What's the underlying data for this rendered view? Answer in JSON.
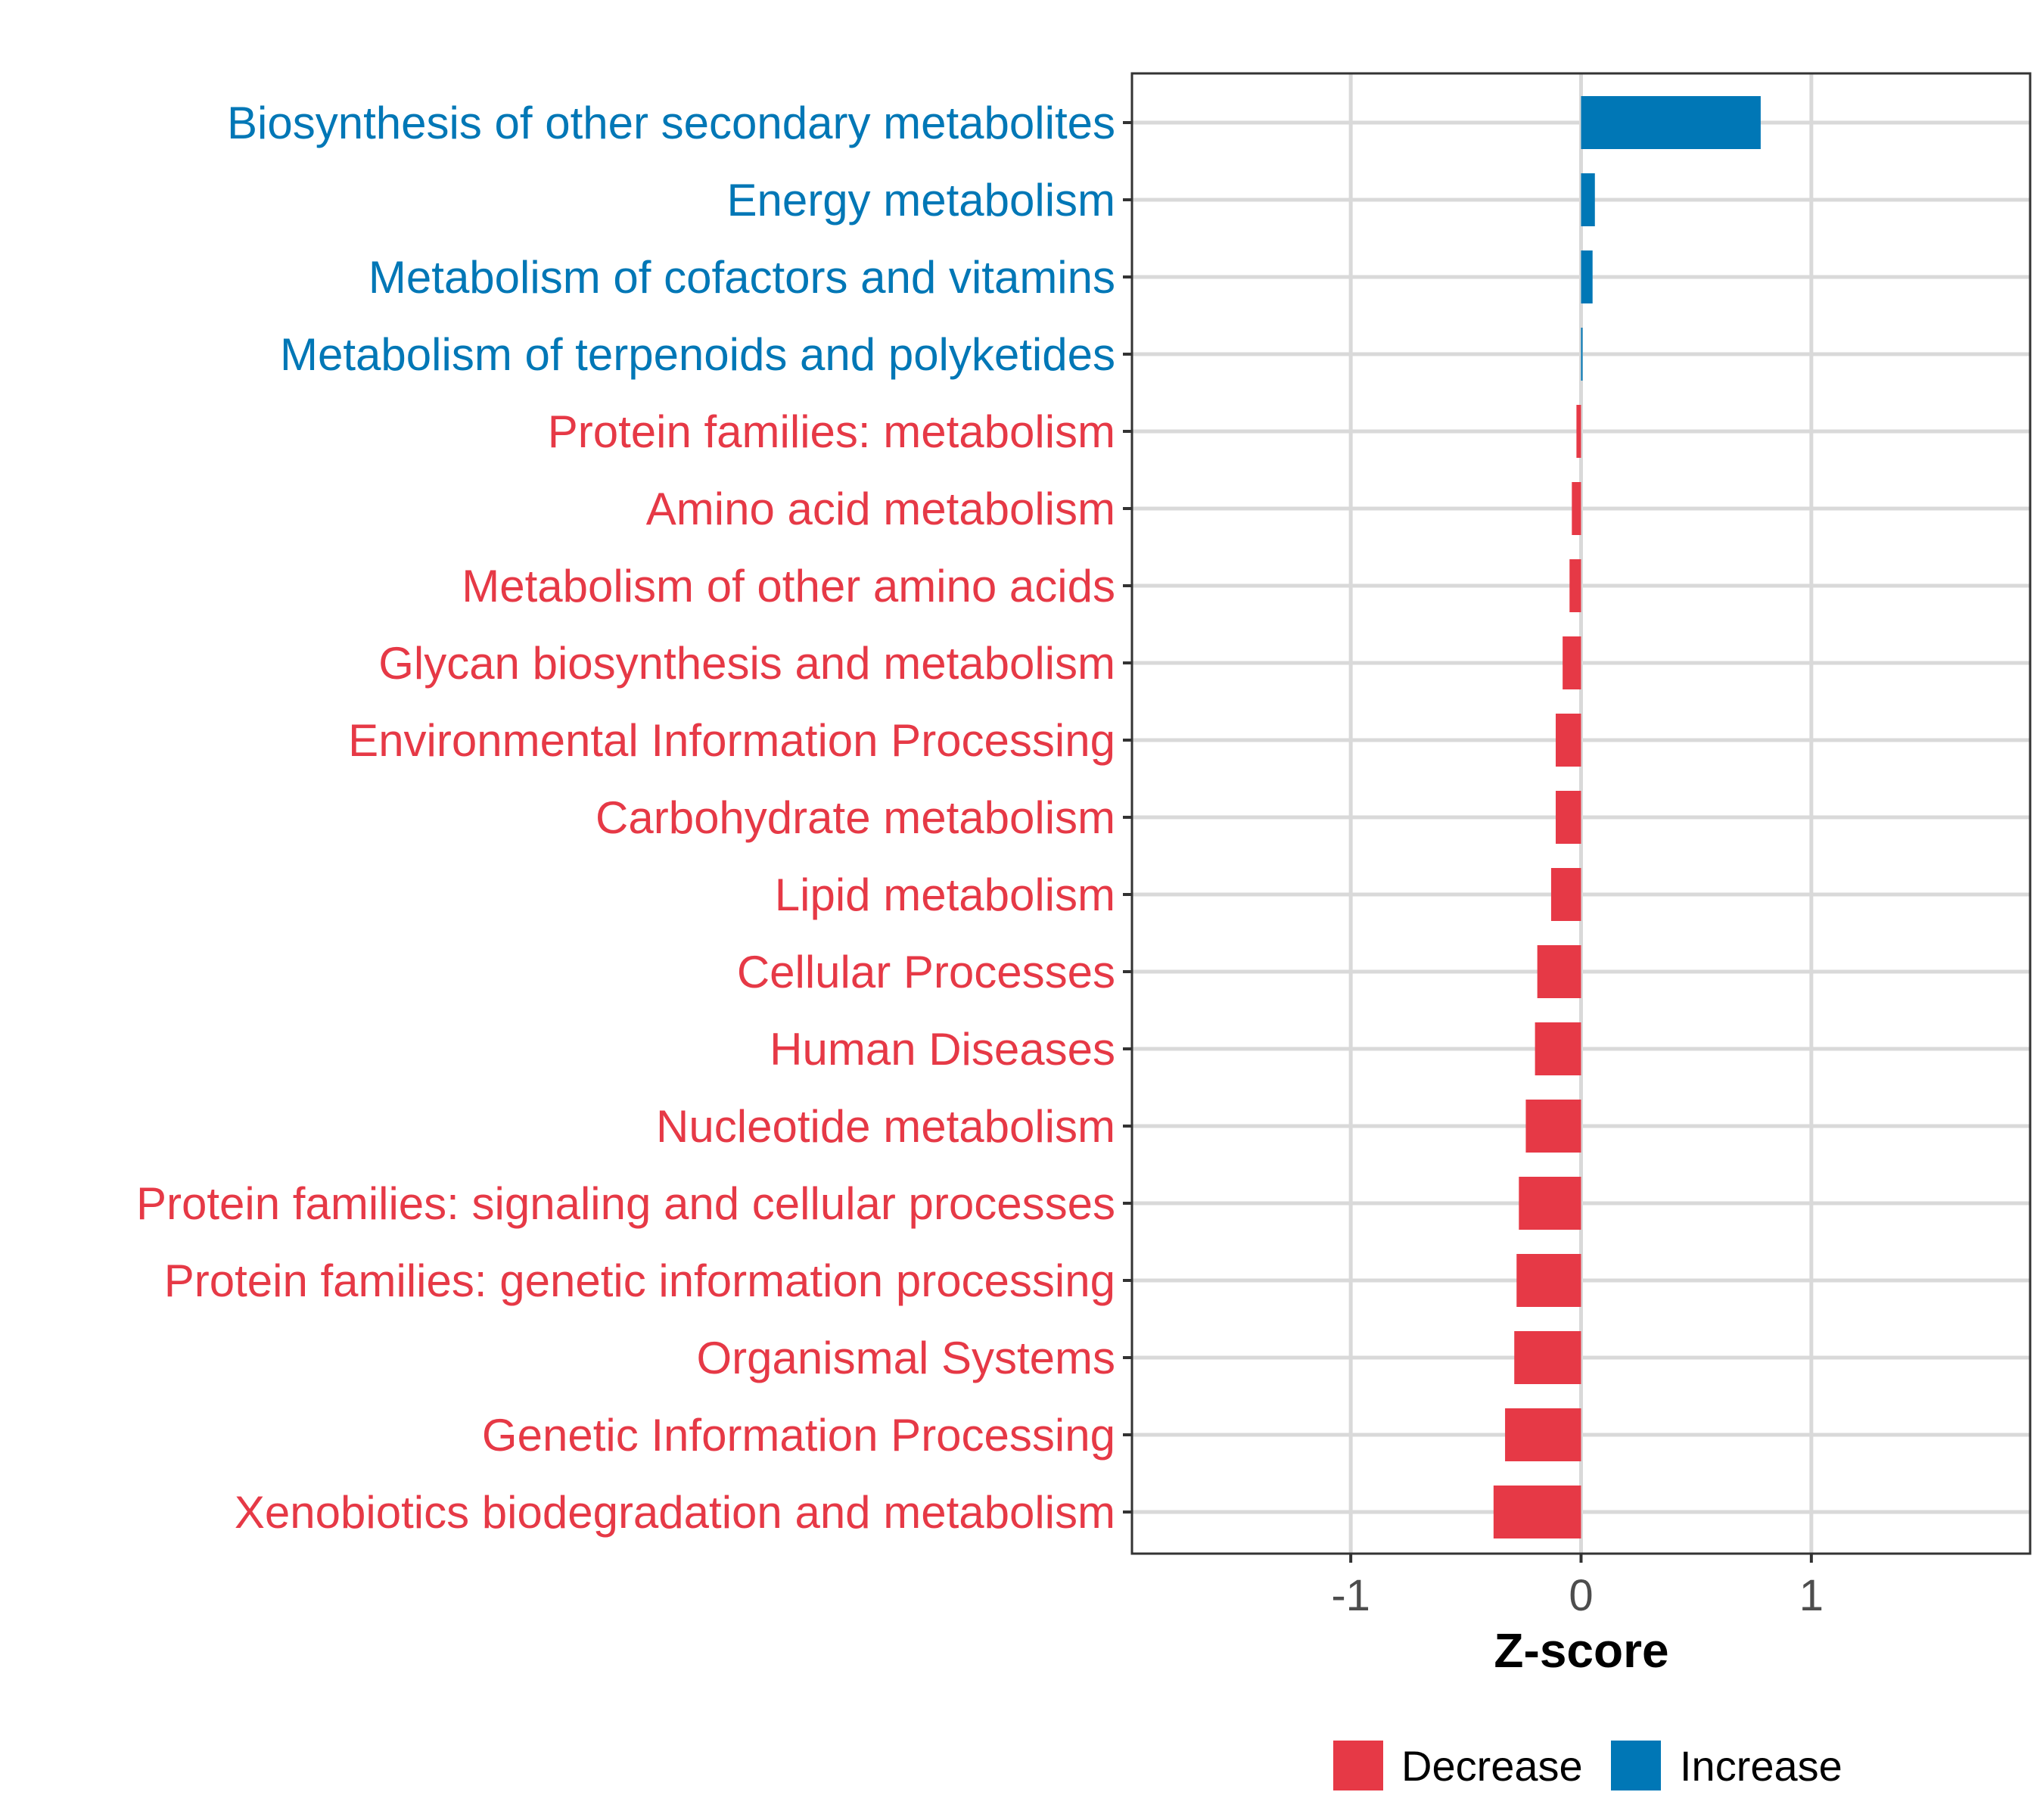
{
  "chart_data": {
    "type": "bar",
    "orientation": "horizontal",
    "xlabel": "Z-score",
    "xlim": [
      -1.95,
      1.95
    ],
    "xticks": [
      -1,
      0,
      1
    ],
    "xtick_labels": [
      "-1",
      "0",
      "1"
    ],
    "grid": true,
    "legend_position": "bottom",
    "colors": {
      "Decrease": "#E63946",
      "Increase": "#0077B6"
    },
    "legend": [
      {
        "label": "Decrease",
        "color": "#E63946"
      },
      {
        "label": "Increase",
        "color": "#0077B6"
      }
    ],
    "categories": [
      "Biosynthesis of other secondary metabolites",
      "Energy metabolism",
      "Metabolism of cofactors and vitamins",
      "Metabolism of terpenoids and polyketides",
      "Protein families: metabolism",
      "Amino acid metabolism",
      "Metabolism of other amino acids",
      "Glycan biosynthesis and metabolism",
      "Environmental Information Processing",
      "Carbohydrate metabolism",
      "Lipid metabolism",
      "Cellular Processes",
      "Human Diseases",
      "Nucleotide metabolism",
      "Protein families: signaling and cellular processes",
      "Protein families: genetic information processing",
      "Organismal Systems",
      "Genetic Information Processing",
      "Xenobiotics biodegradation and metabolism"
    ],
    "values": [
      0.78,
      0.06,
      0.05,
      0.005,
      -0.02,
      -0.04,
      -0.05,
      -0.08,
      -0.11,
      -0.11,
      -0.13,
      -0.19,
      -0.2,
      -0.24,
      -0.27,
      -0.28,
      -0.29,
      -0.33,
      -0.38
    ],
    "groups": [
      "Increase",
      "Increase",
      "Increase",
      "Increase",
      "Decrease",
      "Decrease",
      "Decrease",
      "Decrease",
      "Decrease",
      "Decrease",
      "Decrease",
      "Decrease",
      "Decrease",
      "Decrease",
      "Decrease",
      "Decrease",
      "Decrease",
      "Decrease",
      "Decrease"
    ]
  }
}
